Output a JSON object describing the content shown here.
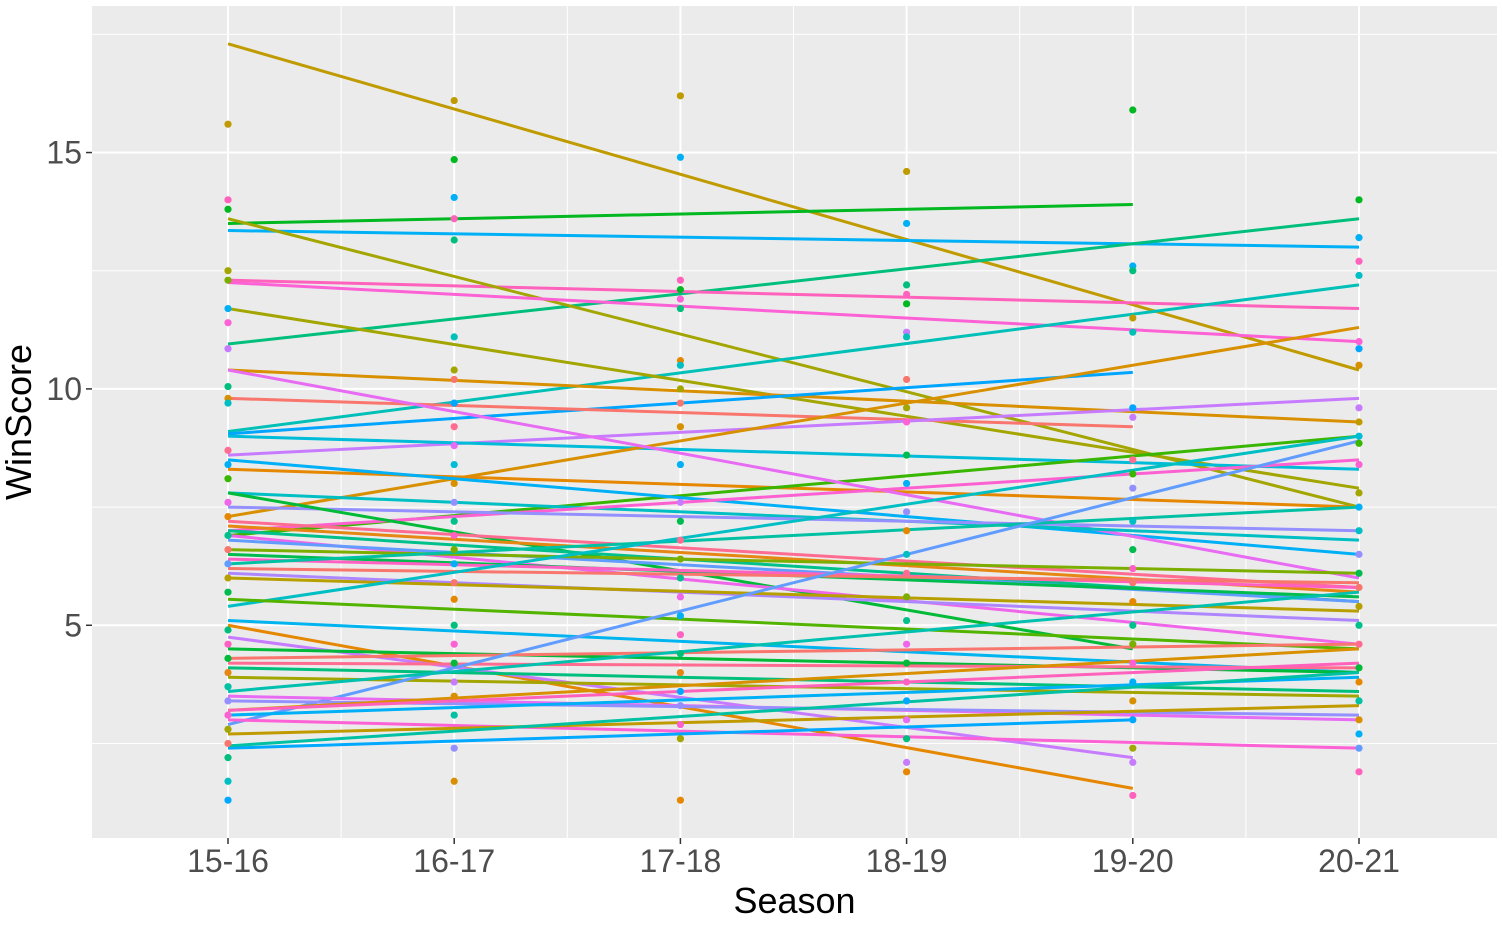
{
  "chart_data": {
    "type": "scatter",
    "xlabel": "Season",
    "ylabel": "WinScore",
    "categories": [
      "15-16",
      "16-17",
      "17-18",
      "18-19",
      "19-20",
      "20-21"
    ],
    "ylim": [
      0.5,
      18.1
    ],
    "yticks": [
      5,
      10,
      15
    ],
    "grid": true,
    "legend": "none",
    "panel_background": "#ebebeb",
    "grid_color": "#ffffff",
    "trend_lines": [
      {
        "color": "#c09b00",
        "start": 17.3,
        "end": 10.4
      },
      {
        "color": "#00b81f",
        "start": 13.5,
        "end": 13.9,
        "last_index": 4
      },
      {
        "color": "#00b0f6",
        "start": 13.35,
        "end": 13.0
      },
      {
        "color": "#00bf7d",
        "start": 10.95,
        "end": 13.6
      },
      {
        "color": "#ff62bc",
        "start": 12.3,
        "end": 11.7
      },
      {
        "color": "#a3a500",
        "start": 13.6,
        "end": 7.5
      },
      {
        "color": "#fc61d5",
        "start": 12.25,
        "end": 11.0
      },
      {
        "color": "#00c0b8",
        "start": 9.1,
        "end": 12.2
      },
      {
        "color": "#a3a500",
        "start": 11.7,
        "end": 7.9
      },
      {
        "color": "#d89000",
        "start": 10.4,
        "end": 9.3
      },
      {
        "color": "#00a5ff",
        "start": 9.05,
        "end": 10.35,
        "last_index": 4
      },
      {
        "color": "#f8766d",
        "start": 9.8,
        "end": 9.2,
        "last_index": 4
      },
      {
        "color": "#c77cff",
        "start": 8.6,
        "end": 9.8
      },
      {
        "color": "#00bcd8",
        "start": 9.0,
        "end": 8.3
      },
      {
        "color": "#d89000",
        "start": 7.3,
        "end": 11.3
      },
      {
        "color": "#e58700",
        "start": 8.3,
        "end": 7.5
      },
      {
        "color": "#39b600",
        "start": 6.9,
        "end": 9.0
      },
      {
        "color": "#00b0f6",
        "start": 8.5,
        "end": 6.5
      },
      {
        "color": "#e76bf3",
        "start": 10.4,
        "end": 6.0
      },
      {
        "color": "#00bfc4",
        "start": 7.8,
        "end": 6.8
      },
      {
        "color": "#fd61d1",
        "start": 7.0,
        "end": 8.5
      },
      {
        "color": "#9590ff",
        "start": 7.5,
        "end": 7.0
      },
      {
        "color": "#00ba38",
        "start": 7.8,
        "end": 4.5,
        "last_index": 4
      },
      {
        "color": "#ff6c91",
        "start": 7.2,
        "end": 5.8
      },
      {
        "color": "#e68613",
        "start": 7.1,
        "end": 5.7
      },
      {
        "color": "#00c08b",
        "start": 7.0,
        "end": 5.5
      },
      {
        "color": "#f066ea",
        "start": 6.9,
        "end": 4.6
      },
      {
        "color": "#619cff",
        "start": 6.8,
        "end": 5.5
      },
      {
        "color": "#7cae00",
        "start": 6.6,
        "end": 6.1
      },
      {
        "color": "#00bb4e",
        "start": 6.5,
        "end": 5.6
      },
      {
        "color": "#ff61c3",
        "start": 6.4,
        "end": 5.8
      },
      {
        "color": "#00c1a3",
        "start": 6.3,
        "end": 7.5
      },
      {
        "color": "#f8766d",
        "start": 6.2,
        "end": 5.9
      },
      {
        "color": "#ae87ff",
        "start": 6.1,
        "end": 5.1
      },
      {
        "color": "#b79f00",
        "start": 6.0,
        "end": 5.3
      },
      {
        "color": "#00bfc4",
        "start": 5.4,
        "end": 9.0
      },
      {
        "color": "#53b400",
        "start": 5.55,
        "end": 4.5
      },
      {
        "color": "#00b4ef",
        "start": 5.1,
        "end": 4.0
      },
      {
        "color": "#e58700",
        "start": 5.0,
        "end": 1.55,
        "last_index": 4
      },
      {
        "color": "#c77cff",
        "start": 4.75,
        "end": 2.2,
        "last_index": 4
      },
      {
        "color": "#00ba38",
        "start": 4.5,
        "end": 4.0
      },
      {
        "color": "#f8766d",
        "start": 4.3,
        "end": 4.6
      },
      {
        "color": "#ff6c91",
        "start": 4.2,
        "end": 4.1
      },
      {
        "color": "#00bf7d",
        "start": 4.1,
        "end": 3.6
      },
      {
        "color": "#a3a500",
        "start": 3.9,
        "end": 3.5
      },
      {
        "color": "#619cff",
        "start": 2.9,
        "end": 8.9
      },
      {
        "color": "#00c0af",
        "start": 3.6,
        "end": 5.7
      },
      {
        "color": "#e76bf3",
        "start": 3.5,
        "end": 3.0
      },
      {
        "color": "#9590ff",
        "start": 3.4,
        "end": 3.1
      },
      {
        "color": "#d89000",
        "start": 3.2,
        "end": 4.5
      },
      {
        "color": "#ff62bc",
        "start": 3.2,
        "end": 4.2
      },
      {
        "color": "#00b0f6",
        "start": 3.1,
        "end": 3.9
      },
      {
        "color": "#fc61d5",
        "start": 3.0,
        "end": 2.4
      },
      {
        "color": "#c09b00",
        "start": 2.7,
        "end": 3.3
      },
      {
        "color": "#00a9ff",
        "start": 2.4,
        "end": 3.0,
        "last_index": 4
      },
      {
        "color": "#00c1a3",
        "start": 2.45,
        "end": 4.0
      }
    ],
    "points_approx": [
      {
        "x": "15-16",
        "y": 15.6,
        "color": "#c09b00"
      },
      {
        "x": "15-16",
        "y": 14.0,
        "color": "#ff62bc"
      },
      {
        "x": "15-16",
        "y": 13.8,
        "color": "#00b81f"
      },
      {
        "x": "15-16",
        "y": 12.5,
        "color": "#a3a500"
      },
      {
        "x": "15-16",
        "y": 12.3,
        "color": "#7cae00"
      },
      {
        "x": "15-16",
        "y": 11.7,
        "color": "#00b0f6"
      },
      {
        "x": "15-16",
        "y": 11.4,
        "color": "#fc61d5"
      },
      {
        "x": "15-16",
        "y": 10.85,
        "color": "#c77cff"
      },
      {
        "x": "15-16",
        "y": 10.05,
        "color": "#00bf7d"
      },
      {
        "x": "15-16",
        "y": 9.8,
        "color": "#d89000"
      },
      {
        "x": "15-16",
        "y": 9.7,
        "color": "#00bfc4"
      },
      {
        "x": "15-16",
        "y": 8.7,
        "color": "#ff6c91"
      },
      {
        "x": "15-16",
        "y": 8.4,
        "color": "#00b0f6"
      },
      {
        "x": "15-16",
        "y": 8.1,
        "color": "#39b600"
      },
      {
        "x": "15-16",
        "y": 7.6,
        "color": "#f066ea"
      },
      {
        "x": "15-16",
        "y": 7.3,
        "color": "#e58700"
      },
      {
        "x": "15-16",
        "y": 6.9,
        "color": "#00c08b"
      },
      {
        "x": "15-16",
        "y": 6.6,
        "color": "#f8766d"
      },
      {
        "x": "15-16",
        "y": 6.3,
        "color": "#619cff"
      },
      {
        "x": "15-16",
        "y": 6.0,
        "color": "#b79f00"
      },
      {
        "x": "15-16",
        "y": 5.7,
        "color": "#00bb4e"
      },
      {
        "x": "15-16",
        "y": 4.9,
        "color": "#00bf7d"
      },
      {
        "x": "15-16",
        "y": 4.6,
        "color": "#ff61c3"
      },
      {
        "x": "15-16",
        "y": 4.3,
        "color": "#00ba38"
      },
      {
        "x": "15-16",
        "y": 4.0,
        "color": "#e68613"
      },
      {
        "x": "15-16",
        "y": 3.7,
        "color": "#00c1a3"
      },
      {
        "x": "15-16",
        "y": 3.4,
        "color": "#9590ff"
      },
      {
        "x": "15-16",
        "y": 3.1,
        "color": "#fd61d1"
      },
      {
        "x": "15-16",
        "y": 2.8,
        "color": "#a3a500"
      },
      {
        "x": "15-16",
        "y": 2.5,
        "color": "#f8766d"
      },
      {
        "x": "15-16",
        "y": 2.2,
        "color": "#00bf7d"
      },
      {
        "x": "15-16",
        "y": 1.7,
        "color": "#00bfc4"
      },
      {
        "x": "15-16",
        "y": 1.3,
        "color": "#00a9ff"
      },
      {
        "x": "16-17",
        "y": 16.1,
        "color": "#c09b00"
      },
      {
        "x": "16-17",
        "y": 14.85,
        "color": "#00b81f"
      },
      {
        "x": "16-17",
        "y": 14.05,
        "color": "#00b0f6"
      },
      {
        "x": "16-17",
        "y": 13.6,
        "color": "#ff62bc"
      },
      {
        "x": "16-17",
        "y": 13.15,
        "color": "#00bf7d"
      },
      {
        "x": "16-17",
        "y": 11.1,
        "color": "#00c0b8"
      },
      {
        "x": "16-17",
        "y": 10.4,
        "color": "#a3a500"
      },
      {
        "x": "16-17",
        "y": 10.2,
        "color": "#f8766d"
      },
      {
        "x": "16-17",
        "y": 9.7,
        "color": "#00a5ff"
      },
      {
        "x": "16-17",
        "y": 9.2,
        "color": "#ff6c91"
      },
      {
        "x": "16-17",
        "y": 8.8,
        "color": "#e76bf3"
      },
      {
        "x": "16-17",
        "y": 8.4,
        "color": "#00bcd8"
      },
      {
        "x": "16-17",
        "y": 8.0,
        "color": "#d89000"
      },
      {
        "x": "16-17",
        "y": 7.6,
        "color": "#9590ff"
      },
      {
        "x": "16-17",
        "y": 7.2,
        "color": "#00c08b"
      },
      {
        "x": "16-17",
        "y": 6.9,
        "color": "#ff61c3"
      },
      {
        "x": "16-17",
        "y": 6.6,
        "color": "#7cae00"
      },
      {
        "x": "16-17",
        "y": 6.3,
        "color": "#00b0f6"
      },
      {
        "x": "16-17",
        "y": 5.9,
        "color": "#f8766d"
      },
      {
        "x": "16-17",
        "y": 5.55,
        "color": "#e58700"
      },
      {
        "x": "16-17",
        "y": 5.0,
        "color": "#00bf7d"
      },
      {
        "x": "16-17",
        "y": 4.6,
        "color": "#fc61d5"
      },
      {
        "x": "16-17",
        "y": 4.2,
        "color": "#00ba38"
      },
      {
        "x": "16-17",
        "y": 3.8,
        "color": "#c77cff"
      },
      {
        "x": "16-17",
        "y": 3.5,
        "color": "#d89000"
      },
      {
        "x": "16-17",
        "y": 3.1,
        "color": "#00c1a3"
      },
      {
        "x": "16-17",
        "y": 2.4,
        "color": "#9590ff"
      },
      {
        "x": "16-17",
        "y": 1.7,
        "color": "#d89000"
      },
      {
        "x": "17-18",
        "y": 16.2,
        "color": "#c09b00"
      },
      {
        "x": "17-18",
        "y": 14.9,
        "color": "#00b0f6"
      },
      {
        "x": "17-18",
        "y": 12.3,
        "color": "#ff62bc"
      },
      {
        "x": "17-18",
        "y": 12.1,
        "color": "#00b81f"
      },
      {
        "x": "17-18",
        "y": 11.9,
        "color": "#fc61d5"
      },
      {
        "x": "17-18",
        "y": 11.7,
        "color": "#00bf7d"
      },
      {
        "x": "17-18",
        "y": 10.6,
        "color": "#e58700"
      },
      {
        "x": "17-18",
        "y": 10.5,
        "color": "#00bfc4"
      },
      {
        "x": "17-18",
        "y": 10.0,
        "color": "#a3a500"
      },
      {
        "x": "17-18",
        "y": 9.7,
        "color": "#f8766d"
      },
      {
        "x": "17-18",
        "y": 9.2,
        "color": "#d89000"
      },
      {
        "x": "17-18",
        "y": 8.4,
        "color": "#00b0f6"
      },
      {
        "x": "17-18",
        "y": 7.6,
        "color": "#c77cff"
      },
      {
        "x": "17-18",
        "y": 7.2,
        "color": "#00bb4e"
      },
      {
        "x": "17-18",
        "y": 6.8,
        "color": "#ff6c91"
      },
      {
        "x": "17-18",
        "y": 6.4,
        "color": "#7cae00"
      },
      {
        "x": "17-18",
        "y": 6.0,
        "color": "#00c08b"
      },
      {
        "x": "17-18",
        "y": 5.6,
        "color": "#f066ea"
      },
      {
        "x": "17-18",
        "y": 5.2,
        "color": "#00b0f6"
      },
      {
        "x": "17-18",
        "y": 4.8,
        "color": "#ff61c3"
      },
      {
        "x": "17-18",
        "y": 4.4,
        "color": "#00bf7d"
      },
      {
        "x": "17-18",
        "y": 4.0,
        "color": "#e68613"
      },
      {
        "x": "17-18",
        "y": 3.6,
        "color": "#00a9ff"
      },
      {
        "x": "17-18",
        "y": 3.3,
        "color": "#9590ff"
      },
      {
        "x": "17-18",
        "y": 2.9,
        "color": "#fd61d1"
      },
      {
        "x": "17-18",
        "y": 2.6,
        "color": "#a3a500"
      },
      {
        "x": "17-18",
        "y": 1.3,
        "color": "#e58700"
      },
      {
        "x": "18-19",
        "y": 14.6,
        "color": "#c09b00"
      },
      {
        "x": "18-19",
        "y": 13.5,
        "color": "#00b0f6"
      },
      {
        "x": "18-19",
        "y": 12.2,
        "color": "#00bf7d"
      },
      {
        "x": "18-19",
        "y": 12.0,
        "color": "#ff62bc"
      },
      {
        "x": "18-19",
        "y": 11.8,
        "color": "#00b81f"
      },
      {
        "x": "18-19",
        "y": 11.2,
        "color": "#c77cff"
      },
      {
        "x": "18-19",
        "y": 11.1,
        "color": "#00c0b8"
      },
      {
        "x": "18-19",
        "y": 10.2,
        "color": "#f8766d"
      },
      {
        "x": "18-19",
        "y": 9.6,
        "color": "#a3a500"
      },
      {
        "x": "18-19",
        "y": 9.3,
        "color": "#fc61d5"
      },
      {
        "x": "18-19",
        "y": 8.6,
        "color": "#00bb4e"
      },
      {
        "x": "18-19",
        "y": 8.0,
        "color": "#00b0f6"
      },
      {
        "x": "18-19",
        "y": 7.4,
        "color": "#9590ff"
      },
      {
        "x": "18-19",
        "y": 7.0,
        "color": "#e58700"
      },
      {
        "x": "18-19",
        "y": 6.5,
        "color": "#00bfc4"
      },
      {
        "x": "18-19",
        "y": 6.1,
        "color": "#ff6c91"
      },
      {
        "x": "18-19",
        "y": 5.6,
        "color": "#7cae00"
      },
      {
        "x": "18-19",
        "y": 5.1,
        "color": "#00c08b"
      },
      {
        "x": "18-19",
        "y": 4.6,
        "color": "#f066ea"
      },
      {
        "x": "18-19",
        "y": 4.2,
        "color": "#00ba38"
      },
      {
        "x": "18-19",
        "y": 3.8,
        "color": "#ff61c3"
      },
      {
        "x": "18-19",
        "y": 3.4,
        "color": "#00a9ff"
      },
      {
        "x": "18-19",
        "y": 3.0,
        "color": "#e76bf3"
      },
      {
        "x": "18-19",
        "y": 2.6,
        "color": "#00bf7d"
      },
      {
        "x": "18-19",
        "y": 2.1,
        "color": "#c77cff"
      },
      {
        "x": "18-19",
        "y": 1.9,
        "color": "#e58700"
      },
      {
        "x": "19-20",
        "y": 15.9,
        "color": "#00b81f"
      },
      {
        "x": "19-20",
        "y": 12.6,
        "color": "#00b0f6"
      },
      {
        "x": "19-20",
        "y": 12.5,
        "color": "#00bf7d"
      },
      {
        "x": "19-20",
        "y": 11.5,
        "color": "#c09b00"
      },
      {
        "x": "19-20",
        "y": 11.2,
        "color": "#00c0b8"
      },
      {
        "x": "19-20",
        "y": 9.6,
        "color": "#00a5ff"
      },
      {
        "x": "19-20",
        "y": 9.4,
        "color": "#c77cff"
      },
      {
        "x": "19-20",
        "y": 8.5,
        "color": "#ff6c91"
      },
      {
        "x": "19-20",
        "y": 8.2,
        "color": "#39b600"
      },
      {
        "x": "19-20",
        "y": 7.9,
        "color": "#9590ff"
      },
      {
        "x": "19-20",
        "y": 7.2,
        "color": "#00bfc4"
      },
      {
        "x": "19-20",
        "y": 6.6,
        "color": "#00bb4e"
      },
      {
        "x": "19-20",
        "y": 6.2,
        "color": "#ff61c3"
      },
      {
        "x": "19-20",
        "y": 5.9,
        "color": "#f8766d"
      },
      {
        "x": "19-20",
        "y": 5.5,
        "color": "#e58700"
      },
      {
        "x": "19-20",
        "y": 5.0,
        "color": "#00c08b"
      },
      {
        "x": "19-20",
        "y": 4.6,
        "color": "#7cae00"
      },
      {
        "x": "19-20",
        "y": 4.2,
        "color": "#fc61d5"
      },
      {
        "x": "19-20",
        "y": 3.8,
        "color": "#00b0f6"
      },
      {
        "x": "19-20",
        "y": 3.4,
        "color": "#d89000"
      },
      {
        "x": "19-20",
        "y": 3.0,
        "color": "#00a9ff"
      },
      {
        "x": "19-20",
        "y": 2.4,
        "color": "#a3a500"
      },
      {
        "x": "19-20",
        "y": 2.1,
        "color": "#c77cff"
      },
      {
        "x": "19-20",
        "y": 1.4,
        "color": "#ff62bc"
      },
      {
        "x": "20-21",
        "y": 14.0,
        "color": "#00b81f"
      },
      {
        "x": "20-21",
        "y": 13.2,
        "color": "#00b0f6"
      },
      {
        "x": "20-21",
        "y": 12.7,
        "color": "#ff62bc"
      },
      {
        "x": "20-21",
        "y": 12.4,
        "color": "#00bfc4"
      },
      {
        "x": "20-21",
        "y": 11.0,
        "color": "#fc61d5"
      },
      {
        "x": "20-21",
        "y": 10.85,
        "color": "#00a5ff"
      },
      {
        "x": "20-21",
        "y": 10.5,
        "color": "#d89000"
      },
      {
        "x": "20-21",
        "y": 9.6,
        "color": "#c77cff"
      },
      {
        "x": "20-21",
        "y": 9.3,
        "color": "#c09b00"
      },
      {
        "x": "20-21",
        "y": 9.0,
        "color": "#00bcd8"
      },
      {
        "x": "20-21",
        "y": 8.85,
        "color": "#39b600"
      },
      {
        "x": "20-21",
        "y": 8.4,
        "color": "#fd61d1"
      },
      {
        "x": "20-21",
        "y": 7.8,
        "color": "#a3a500"
      },
      {
        "x": "20-21",
        "y": 7.5,
        "color": "#00b0f6"
      },
      {
        "x": "20-21",
        "y": 7.0,
        "color": "#00bfc4"
      },
      {
        "x": "20-21",
        "y": 6.5,
        "color": "#9590ff"
      },
      {
        "x": "20-21",
        "y": 6.1,
        "color": "#00bb4e"
      },
      {
        "x": "20-21",
        "y": 5.8,
        "color": "#f8766d"
      },
      {
        "x": "20-21",
        "y": 5.4,
        "color": "#b79f00"
      },
      {
        "x": "20-21",
        "y": 5.0,
        "color": "#00c08b"
      },
      {
        "x": "20-21",
        "y": 4.6,
        "color": "#ff6c91"
      },
      {
        "x": "20-21",
        "y": 4.1,
        "color": "#00ba38"
      },
      {
        "x": "20-21",
        "y": 3.8,
        "color": "#e58700"
      },
      {
        "x": "20-21",
        "y": 3.4,
        "color": "#00c1a3"
      },
      {
        "x": "20-21",
        "y": 3.0,
        "color": "#d89000"
      },
      {
        "x": "20-21",
        "y": 2.7,
        "color": "#00b0f6"
      },
      {
        "x": "20-21",
        "y": 2.4,
        "color": "#619cff"
      },
      {
        "x": "20-21",
        "y": 1.9,
        "color": "#ff62bc"
      }
    ]
  }
}
